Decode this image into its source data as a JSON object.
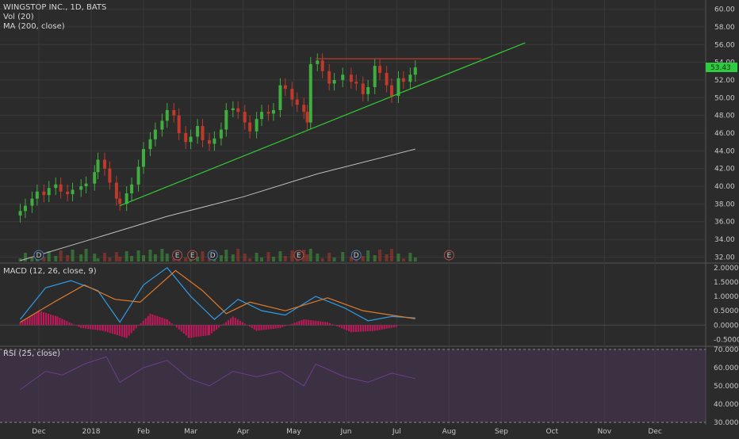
{
  "legend": {
    "main_title": "WINGSTOP INC., 1D, BATS",
    "vol_label": "Vol (20)",
    "ma_label": "MA (200, close)",
    "macd_label": "MACD (12, 26, close, 9)",
    "rsi_label": "RSI (25, close)"
  },
  "last_price_tag": "53.43",
  "colors": {
    "background": "#2b2b2b",
    "grid": "#3a3a3a",
    "up": "#3fae3f",
    "down": "#c0392b",
    "ma": "#bdbdbd",
    "trendline": "#33cc33",
    "resistance": "#c0392b",
    "macd_line": "#2e9ce6",
    "signal_line": "#e07b2a",
    "histogram": "#c2185b",
    "rsi_fill": "#4a3656",
    "rsi_line": "#6a3f8c",
    "price_tag": "#2ecc40"
  },
  "chart_data": [
    {
      "type": "candlestick",
      "title": "WINGSTOP INC., 1D, BATS",
      "x_ticks": [
        "Dec",
        "2018",
        "Feb",
        "Mar",
        "Apr",
        "May",
        "Jun",
        "Jul",
        "Aug",
        "Sep",
        "Oct",
        "Nov",
        "Dec"
      ],
      "y_ticks": [
        "60.00",
        "58.00",
        "56.00",
        "54.00",
        "52.00",
        "50.00",
        "48.00",
        "46.00",
        "44.00",
        "42.00",
        "40.00",
        "38.00",
        "36.00",
        "34.00",
        "32.00"
      ],
      "ylim": [
        31.5,
        60.5
      ],
      "series": [
        {
          "name": "price",
          "values": [
            {
              "date": "2017-11-20",
              "close": 37.2
            },
            {
              "date": "2017-11-23",
              "close": 37.8
            },
            {
              "date": "2017-11-27",
              "close": 38.6
            },
            {
              "date": "2017-11-30",
              "close": 39.4
            },
            {
              "date": "2017-12-04",
              "close": 39.0
            },
            {
              "date": "2017-12-07",
              "close": 39.8
            },
            {
              "date": "2017-12-11",
              "close": 40.2
            },
            {
              "date": "2017-12-14",
              "close": 39.4
            },
            {
              "date": "2017-12-18",
              "close": 39.1
            },
            {
              "date": "2017-12-21",
              "close": 39.6
            },
            {
              "date": "2017-12-26",
              "close": 40.0
            },
            {
              "date": "2017-12-29",
              "close": 40.3
            },
            {
              "date": "2018-01-03",
              "close": 41.6
            },
            {
              "date": "2018-01-05",
              "close": 43.0
            },
            {
              "date": "2018-01-09",
              "close": 42.0
            },
            {
              "date": "2018-01-12",
              "close": 40.4
            },
            {
              "date": "2018-01-16",
              "close": 38.6
            },
            {
              "date": "2018-01-18",
              "close": 38.0
            },
            {
              "date": "2018-01-22",
              "close": 39.2
            },
            {
              "date": "2018-01-25",
              "close": 40.2
            },
            {
              "date": "2018-01-29",
              "close": 42.2
            },
            {
              "date": "2018-02-01",
              "close": 44.2
            },
            {
              "date": "2018-02-05",
              "close": 45.3
            },
            {
              "date": "2018-02-08",
              "close": 46.4
            },
            {
              "date": "2018-02-12",
              "close": 47.4
            },
            {
              "date": "2018-02-15",
              "close": 48.6
            },
            {
              "date": "2018-02-19",
              "close": 48.0
            },
            {
              "date": "2018-02-22",
              "close": 46.0
            },
            {
              "date": "2018-02-26",
              "close": 45.0
            },
            {
              "date": "2018-03-01",
              "close": 45.6
            },
            {
              "date": "2018-03-05",
              "close": 46.8
            },
            {
              "date": "2018-03-08",
              "close": 45.2
            },
            {
              "date": "2018-03-12",
              "close": 44.8
            },
            {
              "date": "2018-03-15",
              "close": 45.4
            },
            {
              "date": "2018-03-19",
              "close": 46.4
            },
            {
              "date": "2018-03-22",
              "close": 48.6
            },
            {
              "date": "2018-03-26",
              "close": 48.8
            },
            {
              "date": "2018-03-29",
              "close": 48.4
            },
            {
              "date": "2018-04-02",
              "close": 47.2
            },
            {
              "date": "2018-04-05",
              "close": 46.2
            },
            {
              "date": "2018-04-09",
              "close": 47.6
            },
            {
              "date": "2018-04-12",
              "close": 48.4
            },
            {
              "date": "2018-04-16",
              "close": 48.2
            },
            {
              "date": "2018-04-19",
              "close": 48.6
            },
            {
              "date": "2018-04-23",
              "close": 51.4
            },
            {
              "date": "2018-04-26",
              "close": 51.0
            },
            {
              "date": "2018-04-30",
              "close": 49.8
            },
            {
              "date": "2018-05-03",
              "close": 49.2
            },
            {
              "date": "2018-05-07",
              "close": 48.4
            },
            {
              "date": "2018-05-09",
              "close": 47.2
            },
            {
              "date": "2018-05-11",
              "close": 53.8
            },
            {
              "date": "2018-05-15",
              "close": 54.2
            },
            {
              "date": "2018-05-18",
              "close": 53.0
            },
            {
              "date": "2018-05-22",
              "close": 51.6
            },
            {
              "date": "2018-05-25",
              "close": 52.0
            },
            {
              "date": "2018-05-30",
              "close": 52.6
            },
            {
              "date": "2018-06-04",
              "close": 51.8
            },
            {
              "date": "2018-06-07",
              "close": 51.6
            },
            {
              "date": "2018-06-11",
              "close": 50.4
            },
            {
              "date": "2018-06-14",
              "close": 51.2
            },
            {
              "date": "2018-06-18",
              "close": 53.6
            },
            {
              "date": "2018-06-21",
              "close": 52.8
            },
            {
              "date": "2018-06-25",
              "close": 51.4
            },
            {
              "date": "2018-06-28",
              "close": 50.2
            },
            {
              "date": "2018-07-02",
              "close": 52.2
            },
            {
              "date": "2018-07-05",
              "close": 51.8
            },
            {
              "date": "2018-07-09",
              "close": 52.6
            },
            {
              "date": "2018-07-12",
              "close": 53.43
            }
          ]
        },
        {
          "name": "MA (200, close)",
          "values": [
            {
              "date": "2017-11-20",
              "close": 31.6
            },
            {
              "date": "2018-01-01",
              "close": 34.0
            },
            {
              "date": "2018-02-15",
              "close": 36.6
            },
            {
              "date": "2018-04-01",
              "close": 38.8
            },
            {
              "date": "2018-05-15",
              "close": 41.4
            },
            {
              "date": "2018-07-12",
              "close": 44.2
            }
          ]
        }
      ],
      "trendline": {
        "from": {
          "date": "2018-01-18",
          "close": 37.8
        },
        "to": {
          "date": "2018-09-15",
          "close": 56.2
        }
      },
      "resistance": {
        "from": {
          "date": "2018-05-14",
          "close": 54.4
        },
        "to": {
          "date": "2018-08-20",
          "close": 54.4
        }
      },
      "event_markers": [
        {
          "date": "2017-12-01",
          "label": "D"
        },
        {
          "date": "2018-02-21",
          "label": "E"
        },
        {
          "date": "2018-03-02",
          "label": "E"
        },
        {
          "date": "2018-03-14",
          "label": "D"
        },
        {
          "date": "2018-05-04",
          "label": "E"
        },
        {
          "date": "2018-06-07",
          "label": "D"
        },
        {
          "date": "2018-08-01",
          "label": "E"
        }
      ]
    },
    {
      "type": "line",
      "title": "MACD (12, 26, close, 9)",
      "y_ticks": [
        "2.0000",
        "1.5000",
        "1.0000",
        "0.5000",
        "0.0000",
        "-0.5000"
      ],
      "ylim": [
        -0.6,
        2.05
      ],
      "series": [
        {
          "name": "macd",
          "values": [
            {
              "date": "2017-11-20",
              "value": 0.2
            },
            {
              "date": "2017-12-05",
              "value": 1.3
            },
            {
              "date": "2017-12-20",
              "value": 1.55
            },
            {
              "date": "2018-01-05",
              "value": 1.2
            },
            {
              "date": "2018-01-18",
              "value": 0.1
            },
            {
              "date": "2018-02-01",
              "value": 1.4
            },
            {
              "date": "2018-02-15",
              "value": 2.0
            },
            {
              "date": "2018-03-01",
              "value": 1.0
            },
            {
              "date": "2018-03-15",
              "value": 0.2
            },
            {
              "date": "2018-03-29",
              "value": 0.9
            },
            {
              "date": "2018-04-12",
              "value": 0.5
            },
            {
              "date": "2018-04-26",
              "value": 0.35
            },
            {
              "date": "2018-05-14",
              "value": 1.0
            },
            {
              "date": "2018-05-31",
              "value": 0.6
            },
            {
              "date": "2018-06-14",
              "value": 0.15
            },
            {
              "date": "2018-06-28",
              "value": 0.3
            },
            {
              "date": "2018-07-12",
              "value": 0.25
            }
          ]
        },
        {
          "name": "signal",
          "values": [
            {
              "date": "2017-11-20",
              "value": 0.1
            },
            {
              "date": "2017-12-10",
              "value": 0.8
            },
            {
              "date": "2017-12-28",
              "value": 1.4
            },
            {
              "date": "2018-01-15",
              "value": 0.9
            },
            {
              "date": "2018-01-30",
              "value": 0.8
            },
            {
              "date": "2018-02-20",
              "value": 1.9
            },
            {
              "date": "2018-03-08",
              "value": 1.2
            },
            {
              "date": "2018-03-22",
              "value": 0.4
            },
            {
              "date": "2018-04-05",
              "value": 0.8
            },
            {
              "date": "2018-04-26",
              "value": 0.5
            },
            {
              "date": "2018-05-21",
              "value": 0.95
            },
            {
              "date": "2018-06-11",
              "value": 0.5
            },
            {
              "date": "2018-07-12",
              "value": 0.22
            }
          ]
        }
      ],
      "histogram": [
        {
          "date": "2017-11-20",
          "value": 0.1
        },
        {
          "date": "2017-12-01",
          "value": 0.5
        },
        {
          "date": "2017-12-12",
          "value": 0.3
        },
        {
          "date": "2017-12-26",
          "value": -0.1
        },
        {
          "date": "2018-01-08",
          "value": -0.2
        },
        {
          "date": "2018-01-22",
          "value": -0.45
        },
        {
          "date": "2018-02-05",
          "value": 0.4
        },
        {
          "date": "2018-02-15",
          "value": 0.2
        },
        {
          "date": "2018-02-28",
          "value": -0.45
        },
        {
          "date": "2018-03-12",
          "value": -0.35
        },
        {
          "date": "2018-03-26",
          "value": 0.3
        },
        {
          "date": "2018-04-09",
          "value": -0.2
        },
        {
          "date": "2018-04-23",
          "value": -0.1
        },
        {
          "date": "2018-05-07",
          "value": 0.2
        },
        {
          "date": "2018-05-21",
          "value": 0.1
        },
        {
          "date": "2018-06-04",
          "value": -0.25
        },
        {
          "date": "2018-06-18",
          "value": -0.2
        },
        {
          "date": "2018-07-02",
          "value": -0.05
        }
      ]
    },
    {
      "type": "area",
      "title": "RSI (25, close)",
      "y_ticks": [
        "70.0000",
        "60.0000",
        "50.0000",
        "40.0000",
        "30.0000"
      ],
      "ylim": [
        30,
        70
      ],
      "series": [
        {
          "name": "rsi",
          "values": [
            {
              "date": "2017-11-20",
              "value": 48
            },
            {
              "date": "2017-12-05",
              "value": 58
            },
            {
              "date": "2017-12-15",
              "value": 56
            },
            {
              "date": "2017-12-28",
              "value": 62
            },
            {
              "date": "2018-01-10",
              "value": 66
            },
            {
              "date": "2018-01-18",
              "value": 52
            },
            {
              "date": "2018-02-01",
              "value": 60
            },
            {
              "date": "2018-02-15",
              "value": 64
            },
            {
              "date": "2018-02-28",
              "value": 54
            },
            {
              "date": "2018-03-12",
              "value": 50
            },
            {
              "date": "2018-03-26",
              "value": 58
            },
            {
              "date": "2018-04-09",
              "value": 55
            },
            {
              "date": "2018-04-23",
              "value": 58
            },
            {
              "date": "2018-05-07",
              "value": 50
            },
            {
              "date": "2018-05-14",
              "value": 62
            },
            {
              "date": "2018-05-31",
              "value": 55
            },
            {
              "date": "2018-06-14",
              "value": 52
            },
            {
              "date": "2018-06-28",
              "value": 57
            },
            {
              "date": "2018-07-12",
              "value": 54
            }
          ]
        }
      ]
    }
  ]
}
